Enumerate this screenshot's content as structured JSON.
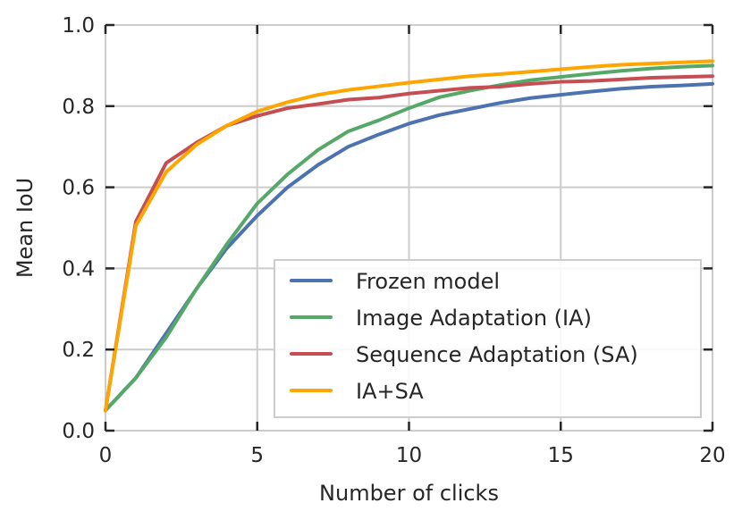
{
  "chart_data": {
    "type": "line",
    "xlabel": "Number of clicks",
    "ylabel": "Mean IoU",
    "xlim": [
      0,
      20
    ],
    "ylim": [
      0.0,
      1.0
    ],
    "xticks": [
      0,
      5,
      10,
      15,
      20
    ],
    "xtick_labels": [
      "0",
      "5",
      "10",
      "15",
      "20"
    ],
    "yticks": [
      0.0,
      0.2,
      0.4,
      0.6,
      0.8,
      1.0
    ],
    "ytick_labels": [
      "0.0",
      "0.2",
      "0.4",
      "0.6",
      "0.8",
      "1.0"
    ],
    "grid": true,
    "legend_position": "lower-right",
    "x": [
      0,
      1,
      2,
      3,
      4,
      5,
      6,
      7,
      8,
      9,
      10,
      11,
      12,
      13,
      14,
      15,
      16,
      17,
      18,
      19,
      20
    ],
    "series": [
      {
        "name": "Frozen model",
        "color": "#4c72b0",
        "values": [
          0.05,
          0.13,
          0.24,
          0.35,
          0.45,
          0.53,
          0.6,
          0.655,
          0.7,
          0.73,
          0.757,
          0.778,
          0.793,
          0.808,
          0.82,
          0.828,
          0.836,
          0.843,
          0.848,
          0.851,
          0.855
        ]
      },
      {
        "name": "Image Adaptation (IA)",
        "color": "#55a868",
        "values": [
          0.05,
          0.13,
          0.23,
          0.35,
          0.46,
          0.56,
          0.632,
          0.692,
          0.738,
          0.765,
          0.795,
          0.822,
          0.838,
          0.852,
          0.864,
          0.872,
          0.88,
          0.887,
          0.893,
          0.897,
          0.9
        ]
      },
      {
        "name": "Sequence Adaptation (SA)",
        "color": "#c44e52",
        "values": [
          0.05,
          0.515,
          0.66,
          0.71,
          0.752,
          0.776,
          0.795,
          0.805,
          0.816,
          0.821,
          0.831,
          0.838,
          0.845,
          0.848,
          0.855,
          0.86,
          0.862,
          0.866,
          0.87,
          0.872,
          0.874
        ]
      },
      {
        "name": "IA+SA",
        "color": "#ffa500",
        "values": [
          0.05,
          0.505,
          0.638,
          0.705,
          0.752,
          0.787,
          0.81,
          0.828,
          0.84,
          0.849,
          0.858,
          0.866,
          0.874,
          0.879,
          0.885,
          0.891,
          0.897,
          0.902,
          0.905,
          0.908,
          0.911
        ]
      }
    ]
  }
}
